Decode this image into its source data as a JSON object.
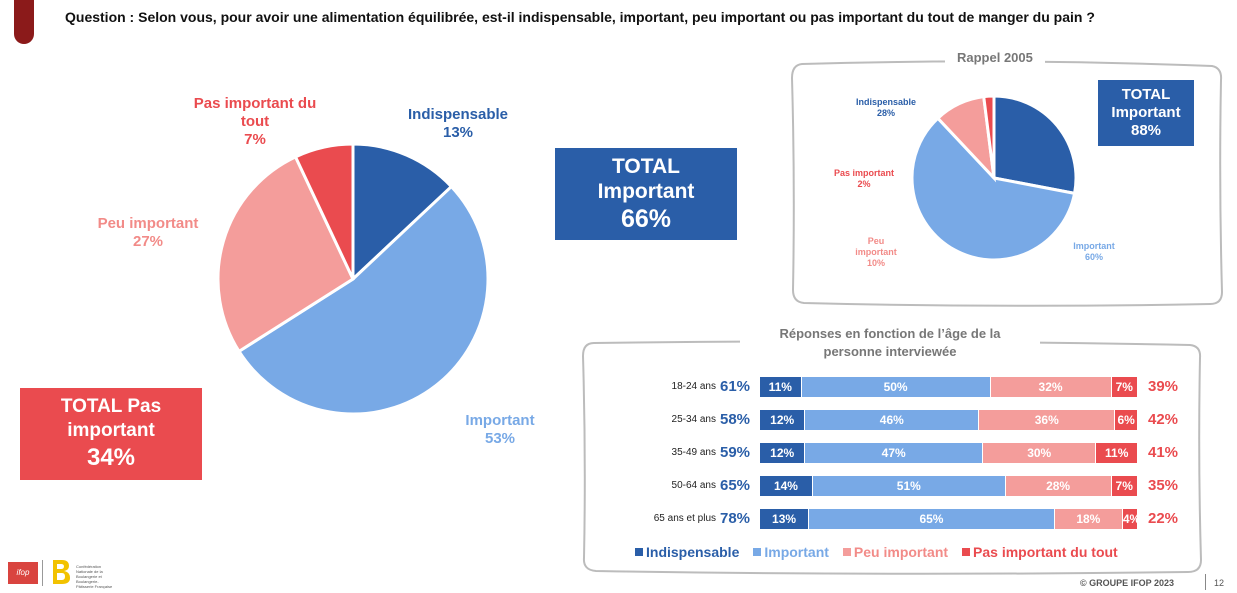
{
  "question": "Question : Selon vous, pour avoir une alimentation équilibrée, est-il indispensable, important, peu important ou pas important du tout de manger du pain ?",
  "colors": {
    "indispensable": "#2a5ea8",
    "important": "#78a9e6",
    "peu_important": "#f49d9b",
    "pas_important": "#ea4b4f"
  },
  "main_labels": {
    "indispensable": {
      "name": "Indispensable",
      "pct": "13%"
    },
    "important": {
      "name": "Important",
      "pct": "53%"
    },
    "peu_important": {
      "name": "Peu important",
      "pct": "27%"
    },
    "pas_important_l1": "Pas important du",
    "pas_important_l2": "tout",
    "pas_important_pct": "7%"
  },
  "total_important": {
    "line1": "TOTAL",
    "line2": "Important",
    "value": "66%"
  },
  "total_pas_important": {
    "line1": "TOTAL Pas",
    "line2": "important",
    "value": "34%"
  },
  "rappel": {
    "title": "Rappel 2005",
    "labels": {
      "indispensable": {
        "name": "Indispensable",
        "pct": "28%"
      },
      "important": {
        "name": "Important",
        "pct": "60%"
      },
      "peu_l1": "Peu",
      "peu_l2": "important",
      "peu_pct": "10%",
      "pas": {
        "name": "Pas important",
        "pct": "2%"
      }
    },
    "total": {
      "line1": "TOTAL",
      "line2": "Important",
      "value": "88%"
    }
  },
  "age_section": {
    "title_l1": "Réponses en fonction de l’âge de la",
    "title_l2": "personne interviewée",
    "rows": [
      {
        "label": "18-24 ans",
        "total_important": "61%",
        "total_pas": "39%",
        "ind": "11%",
        "imp": "50%",
        "peu": "32%",
        "pas": "7%"
      },
      {
        "label": "25-34 ans",
        "total_important": "58%",
        "total_pas": "42%",
        "ind": "12%",
        "imp": "46%",
        "peu": "36%",
        "pas": "6%"
      },
      {
        "label": "35-49 ans",
        "total_important": "59%",
        "total_pas": "41%",
        "ind": "12%",
        "imp": "47%",
        "peu": "30%",
        "pas": "11%"
      },
      {
        "label": "50-64 ans",
        "total_important": "65%",
        "total_pas": "35%",
        "ind": "14%",
        "imp": "51%",
        "peu": "28%",
        "pas": "7%"
      },
      {
        "label": "65 ans et plus",
        "total_important": "78%",
        "total_pas": "22%",
        "ind": "13%",
        "imp": "65%",
        "peu": "18%",
        "pas": "4%"
      }
    ],
    "legend": [
      "Indispensable",
      "Important",
      "Peu important",
      "Pas important du tout"
    ]
  },
  "chart_data": [
    {
      "type": "pie",
      "title": "",
      "categories": [
        "Indispensable",
        "Important",
        "Peu important",
        "Pas important du tout"
      ],
      "values": [
        13,
        53,
        27,
        7
      ]
    },
    {
      "type": "pie",
      "title": "Rappel 2005",
      "categories": [
        "Indispensable",
        "Important",
        "Peu important",
        "Pas important"
      ],
      "values": [
        28,
        60,
        10,
        2
      ]
    },
    {
      "type": "bar",
      "orientation": "horizontal-stacked",
      "title": "Réponses en fonction de l’âge de la personne interviewée",
      "categories": [
        "18-24 ans",
        "25-34 ans",
        "35-49 ans",
        "50-64 ans",
        "65 ans et plus"
      ],
      "series": [
        {
          "name": "Indispensable",
          "values": [
            11,
            12,
            12,
            14,
            13
          ]
        },
        {
          "name": "Important",
          "values": [
            50,
            46,
            47,
            51,
            65
          ]
        },
        {
          "name": "Peu important",
          "values": [
            32,
            36,
            30,
            28,
            18
          ]
        },
        {
          "name": "Pas important du tout",
          "values": [
            7,
            6,
            11,
            7,
            4
          ]
        }
      ]
    }
  ],
  "footer": {
    "copyright": "© GROUPE IFOP 2023",
    "page": "12",
    "logo_ifop": "ifop",
    "logo_text": "Confédération Nationale de la Boulangerie et Boulangerie-Pâtisserie Française"
  }
}
